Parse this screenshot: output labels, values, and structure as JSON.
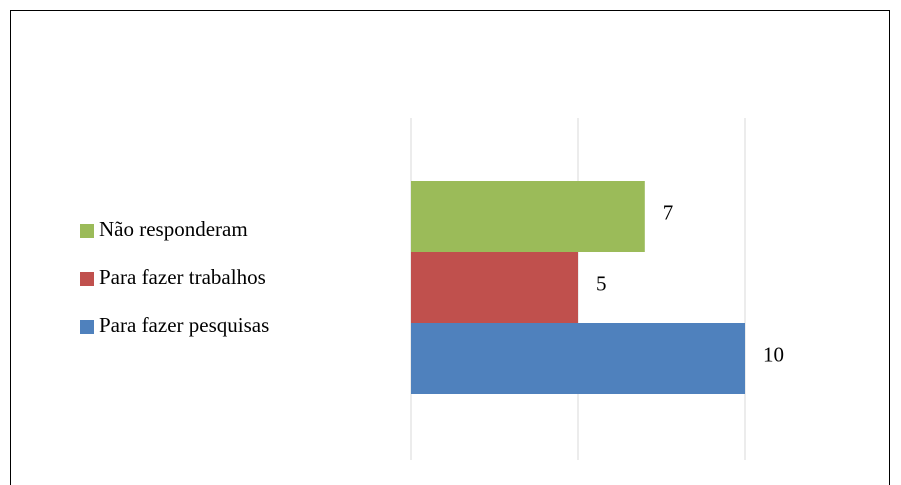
{
  "chart_data": {
    "type": "hbar",
    "categories": [
      null
    ],
    "series": [
      {
        "name": "Não responderam",
        "color": "#9bbb59",
        "values": [
          7
        ]
      },
      {
        "name": "Para fazer trabalhos",
        "color": "#c0504d",
        "values": [
          5
        ]
      },
      {
        "name": "Para fazer pesquisas",
        "color": "#4f81bd",
        "values": [
          10
        ]
      }
    ],
    "xlim": [
      0,
      10
    ],
    "xticks": [
      0,
      5,
      10
    ],
    "grid": true,
    "legend": "left"
  }
}
